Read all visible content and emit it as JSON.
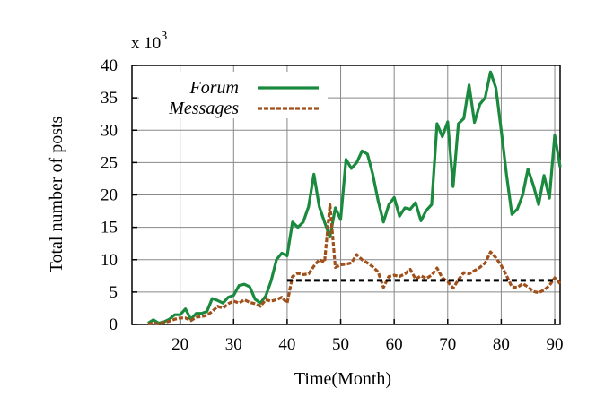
{
  "chart_data": {
    "type": "line",
    "multiplier": {
      "base": "x 10",
      "exponent": "3"
    },
    "xlabel": "Time(Month)",
    "ylabel": "Total number of posts",
    "xlim": [
      11,
      91
    ],
    "ylim": [
      0,
      40
    ],
    "xticks": [
      20,
      30,
      40,
      50,
      60,
      70,
      80,
      90
    ],
    "yticks": [
      0,
      5,
      10,
      15,
      20,
      25,
      30,
      35,
      40
    ],
    "grid": true,
    "legend_position": "top-left",
    "series": [
      {
        "name": "Forum",
        "color": "#1a8a3e",
        "dash": "solid",
        "x": [
          14,
          15,
          16,
          17,
          18,
          19,
          20,
          21,
          22,
          23,
          24,
          25,
          26,
          27,
          28,
          29,
          30,
          31,
          32,
          33,
          34,
          35,
          36,
          37,
          38,
          39,
          40,
          41,
          42,
          43,
          44,
          45,
          46,
          47,
          48,
          49,
          50,
          51,
          52,
          53,
          54,
          55,
          56,
          57,
          58,
          59,
          60,
          61,
          62,
          63,
          64,
          65,
          66,
          67,
          68,
          69,
          70,
          71,
          72,
          73,
          74,
          75,
          76,
          77,
          78,
          79,
          80,
          81,
          82,
          83,
          84,
          85,
          86,
          87,
          88,
          89,
          90,
          91
        ],
        "values": [
          0.2,
          0.7,
          0.2,
          0.4,
          0.8,
          1.5,
          1.5,
          2.4,
          0.8,
          1.7,
          1.7,
          2.0,
          4.0,
          3.7,
          3.3,
          4.2,
          4.5,
          6.0,
          6.2,
          5.8,
          3.9,
          3.3,
          4.4,
          6.7,
          10.0,
          11.0,
          10.6,
          15.8,
          15.0,
          15.8,
          18.2,
          23.2,
          18.2,
          15.8,
          13.5,
          18.0,
          16.2,
          25.5,
          24.1,
          25.0,
          26.8,
          26.3,
          23.2,
          19.1,
          15.8,
          18.5,
          19.6,
          16.7,
          18.0,
          17.8,
          18.8,
          16.0,
          17.6,
          18.5,
          31.0,
          29.0,
          31.3,
          21.3,
          31.0,
          31.8,
          37.0,
          31.2,
          34.0,
          35.0,
          39.0,
          36.5,
          30.0,
          23.0,
          17.0,
          17.8,
          20.0,
          24.0,
          21.5,
          18.5,
          23.0,
          19.5,
          29.2,
          24.3
        ]
      },
      {
        "name": "Messages",
        "color": "#a0501a",
        "dash": "dashed",
        "x": [
          14,
          15,
          16,
          17,
          18,
          19,
          20,
          21,
          22,
          23,
          24,
          25,
          26,
          27,
          28,
          29,
          30,
          31,
          32,
          33,
          34,
          35,
          36,
          37,
          38,
          39,
          40,
          41,
          42,
          43,
          44,
          45,
          46,
          47,
          48,
          49,
          50,
          51,
          52,
          53,
          54,
          55,
          56,
          57,
          58,
          59,
          60,
          61,
          62,
          63,
          64,
          65,
          66,
          67,
          68,
          69,
          70,
          71,
          72,
          73,
          74,
          75,
          76,
          77,
          78,
          79,
          80,
          81,
          82,
          83,
          84,
          85,
          86,
          87,
          88,
          89,
          90,
          91
        ],
        "values": [
          0.1,
          0.2,
          0.1,
          0.3,
          0.5,
          0.8,
          1.0,
          1.0,
          0.6,
          1.1,
          1.2,
          1.4,
          2.0,
          2.8,
          2.5,
          3.2,
          3.6,
          3.3,
          3.8,
          3.4,
          3.2,
          2.8,
          3.8,
          3.6,
          3.8,
          4.2,
          3.3,
          7.4,
          7.9,
          7.7,
          7.8,
          9.0,
          10.0,
          9.6,
          18.5,
          8.8,
          9.2,
          9.3,
          9.5,
          10.8,
          10.0,
          9.5,
          8.9,
          8.1,
          5.7,
          7.4,
          7.6,
          7.4,
          7.8,
          8.5,
          7.0,
          7.5,
          7.1,
          7.6,
          8.7,
          7.2,
          6.6,
          5.6,
          6.9,
          8.0,
          7.8,
          8.3,
          8.8,
          9.5,
          11.2,
          10.3,
          9.1,
          7.5,
          5.8,
          5.7,
          6.3,
          5.8,
          5.1,
          4.9,
          5.3,
          6.0,
          7.2,
          6.3
        ]
      },
      {
        "color": "#000000",
        "dash": "dashed",
        "x": [
          40,
          90
        ],
        "values": [
          6.8,
          6.8
        ]
      }
    ],
    "legend": [
      {
        "label": "Forum",
        "series_index": 0
      },
      {
        "label": "Messages",
        "series_index": 1
      }
    ]
  }
}
